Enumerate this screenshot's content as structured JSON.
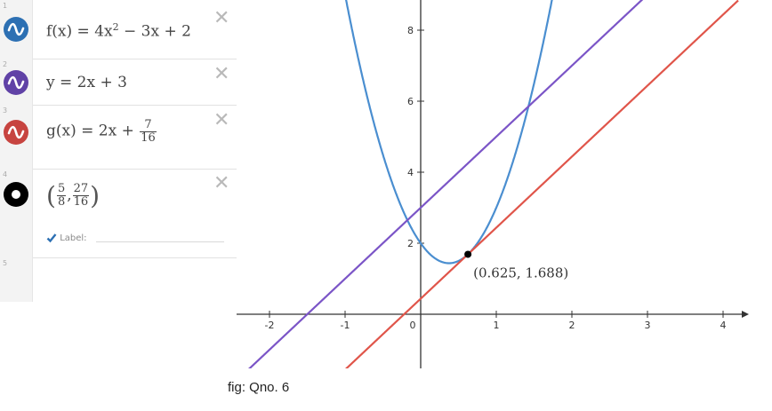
{
  "expressions": [
    {
      "index": "1",
      "color": "#2d70b3",
      "lhs": "f(x) = 4x",
      "sup": "2",
      "rhs": " − 3x + 2"
    },
    {
      "index": "2",
      "color": "#6042a6",
      "text": "y = 2x + 3"
    },
    {
      "index": "3",
      "color": "#c74440",
      "lhs": "g(x) = 2x + ",
      "frac_num": "7",
      "frac_den": "16"
    },
    {
      "index": "4",
      "color": "#000000",
      "x_num": "5",
      "x_den": "8",
      "y_num": "27",
      "y_den": "16",
      "label_checkbox_text": "Label:",
      "label_value": ""
    },
    {
      "index": "5"
    }
  ],
  "graph": {
    "point_label": "(0.625, 1.688)",
    "x_ticks": [
      "-2",
      "-1",
      "0",
      "1",
      "2",
      "3",
      "4"
    ],
    "y_ticks": [
      "2",
      "4",
      "6",
      "8"
    ],
    "colors": {
      "parabola": "#4a8ed0",
      "line_y": "#7b55c7",
      "line_g": "#e0554a",
      "axis": "#333333"
    }
  },
  "chart_data": {
    "type": "line",
    "title": "",
    "xlabel": "",
    "ylabel": "",
    "xlim": [
      -2.5,
      4.2
    ],
    "ylim": [
      -1.4,
      8.8
    ],
    "grid": false,
    "series": [
      {
        "name": "f(x) = 4x^2 − 3x + 2",
        "color": "#4a8ed0",
        "function": "4x^2-3x+2"
      },
      {
        "name": "y = 2x + 3",
        "color": "#7b55c7",
        "function": "2x+3"
      },
      {
        "name": "g(x) = 2x + 7/16",
        "color": "#e0554a",
        "function": "2x+0.4375"
      }
    ],
    "points": [
      {
        "x": 0.625,
        "y": 1.688,
        "label": "(0.625, 1.688)"
      }
    ]
  },
  "caption": "fig: Qno. 6"
}
